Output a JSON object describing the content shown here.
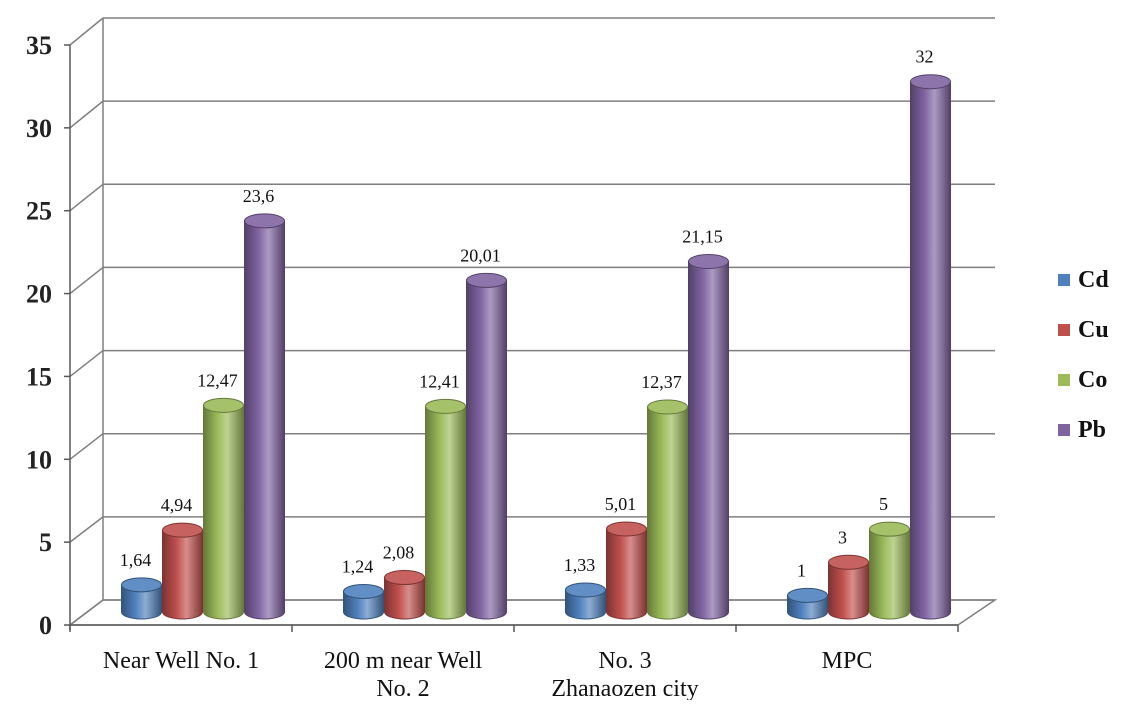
{
  "chart_data": {
    "type": "bar",
    "style": "3d-cylinder",
    "categories": [
      [
        "Near Well No. 1"
      ],
      [
        "200 m near Well",
        "No. 2"
      ],
      [
        "No. 3",
        "Zhanaozen city"
      ],
      [
        "MPC"
      ]
    ],
    "series": [
      {
        "name": "Cd",
        "color": "#4f81bd",
        "values": [
          1.64,
          1.24,
          1.33,
          1
        ],
        "labels": [
          "1,64",
          "1,24",
          "1,33",
          "1"
        ]
      },
      {
        "name": "Cu",
        "color": "#c0504d",
        "values": [
          4.94,
          2.08,
          5.01,
          3
        ],
        "labels": [
          "4,94",
          "2,08",
          "5,01",
          "3"
        ]
      },
      {
        "name": "Co",
        "color": "#9bbb59",
        "values": [
          12.47,
          12.41,
          12.37,
          5
        ],
        "labels": [
          "12,47",
          "12,41",
          "12,37",
          "5"
        ]
      },
      {
        "name": "Pb",
        "color": "#8064a2",
        "values": [
          23.6,
          20.01,
          21.15,
          32
        ],
        "labels": [
          "23,6",
          "20,01",
          "21,15",
          "32"
        ]
      }
    ],
    "ylim": [
      0,
      35
    ],
    "yticks": [
      "0",
      "5",
      "10",
      "15",
      "20",
      "25",
      "30",
      "35"
    ],
    "grid": true,
    "legend_position": "right"
  }
}
